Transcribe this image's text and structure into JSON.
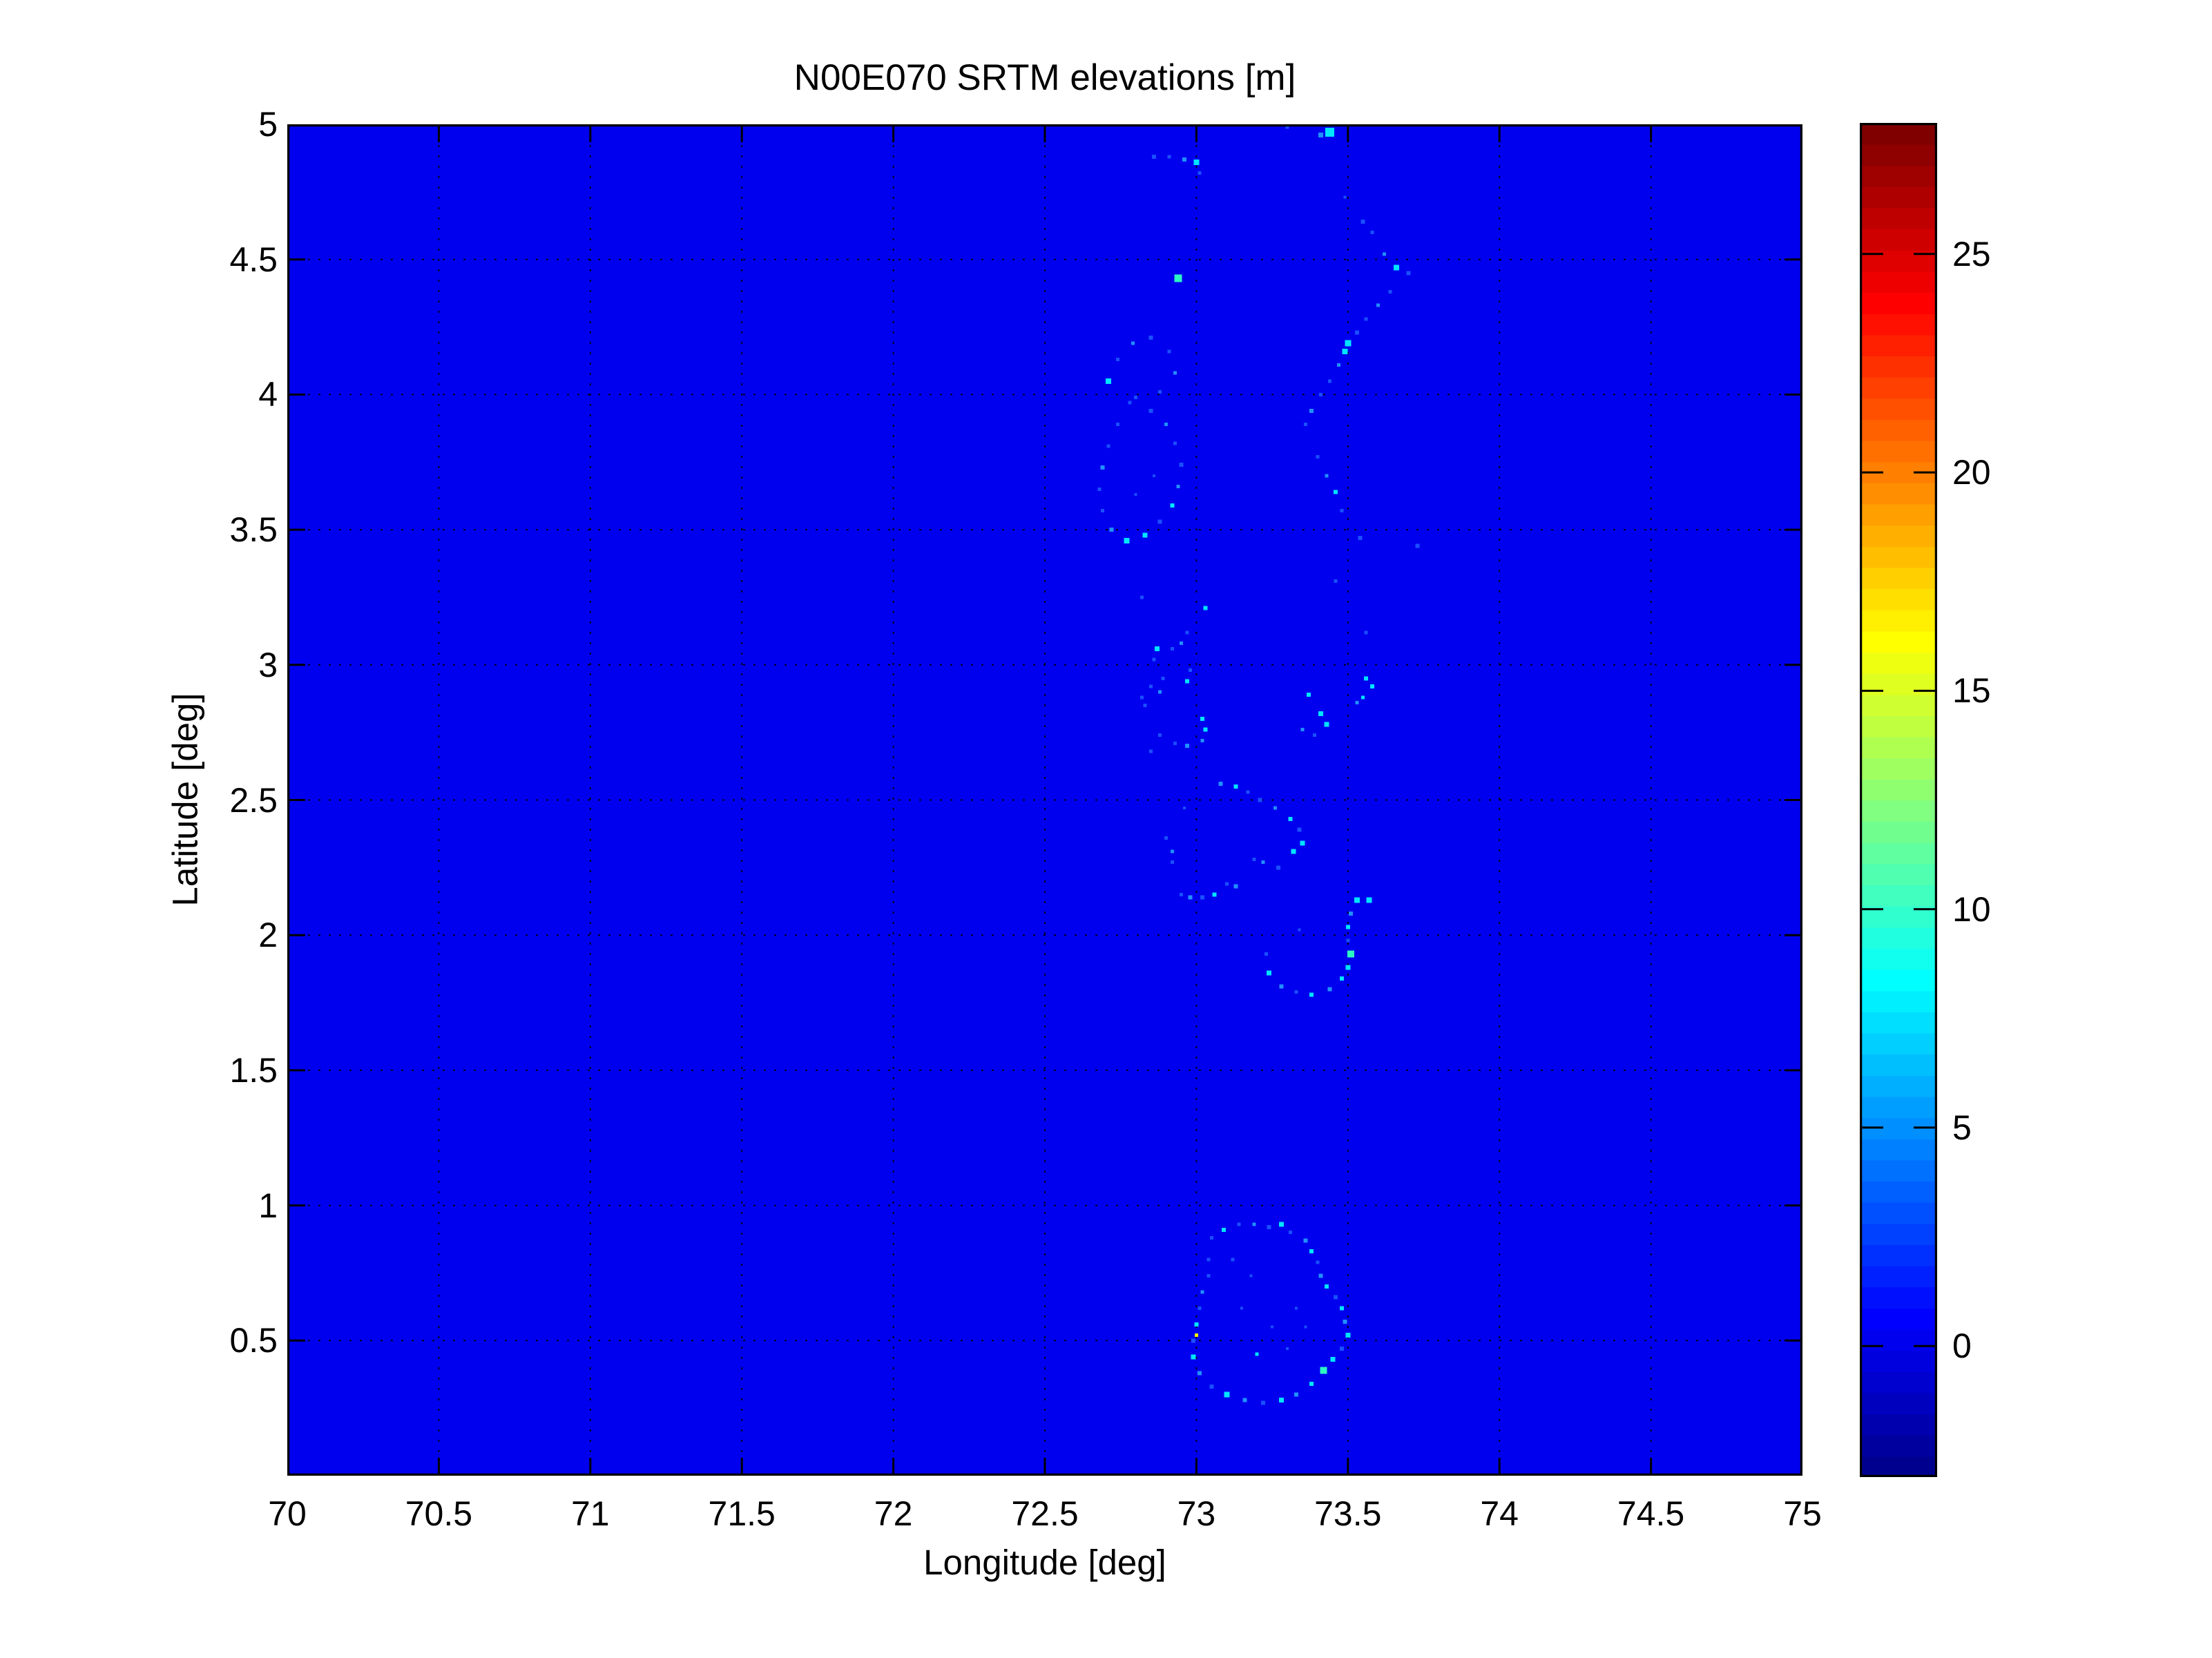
{
  "title": "N00E070 SRTM elevations [m]",
  "xlabel": "Longitude [deg]",
  "ylabel": "Latitude [deg]",
  "chart_data": {
    "type": "heatmap",
    "title": "N00E070 SRTM elevations [m]",
    "xlabel": "Longitude [deg]",
    "ylabel": "Latitude [deg]",
    "x_range": [
      70,
      75
    ],
    "y_range": [
      0,
      5
    ],
    "x_ticks": [
      70,
      70.5,
      71,
      71.5,
      72,
      72.5,
      73,
      73.5,
      74,
      74.5,
      75
    ],
    "y_ticks": [
      0.5,
      1,
      1.5,
      2,
      2.5,
      3,
      3.5,
      4,
      4.5,
      5
    ],
    "grid": true,
    "grid_style": "dotted-black",
    "colormap": "jet-64",
    "color_range": [
      -3,
      28
    ],
    "colorbar_ticks": [
      0,
      5,
      10,
      15,
      20,
      25
    ],
    "background_value": 0,
    "units": "m",
    "palette": {
      "b1": "#1a4fff",
      "b2": "#2190ff",
      "c": "#00e4ff",
      "t": "#2cf6c3",
      "y": "#f8ef00"
    },
    "features": [
      [
        73.44,
        4.97,
        13,
        "c"
      ],
      [
        73.41,
        4.96,
        7,
        "b2"
      ],
      [
        73.3,
        4.99,
        5,
        "b1"
      ],
      [
        73.49,
        4.73,
        4,
        "b1"
      ],
      [
        72.86,
        4.88,
        6,
        "b1"
      ],
      [
        72.91,
        4.88,
        5,
        "b1"
      ],
      [
        72.96,
        4.87,
        6,
        "b2"
      ],
      [
        73.0,
        4.86,
        8,
        "c"
      ],
      [
        73.01,
        4.82,
        5,
        "b1"
      ],
      [
        73.55,
        4.64,
        6,
        "b1"
      ],
      [
        73.58,
        4.6,
        5,
        "b1"
      ],
      [
        73.62,
        4.52,
        5,
        "b2"
      ],
      [
        73.66,
        4.47,
        8,
        "c"
      ],
      [
        73.7,
        4.45,
        6,
        "b1"
      ],
      [
        73.64,
        4.38,
        5,
        "b1"
      ],
      [
        73.6,
        4.33,
        5,
        "b2"
      ],
      [
        73.56,
        4.28,
        5,
        "b1"
      ],
      [
        73.53,
        4.23,
        6,
        "b1"
      ],
      [
        73.5,
        4.19,
        9,
        "c"
      ],
      [
        73.49,
        4.16,
        8,
        "c"
      ],
      [
        73.47,
        4.11,
        5,
        "b2"
      ],
      [
        73.44,
        4.05,
        5,
        "b1"
      ],
      [
        73.41,
        4.0,
        5,
        "b1"
      ],
      [
        73.38,
        3.94,
        6,
        "b2"
      ],
      [
        73.36,
        3.89,
        5,
        "b1"
      ],
      [
        72.94,
        4.43,
        11,
        "t"
      ],
      [
        72.71,
        4.05,
        8,
        "c"
      ],
      [
        72.74,
        4.13,
        5,
        "b1"
      ],
      [
        72.79,
        4.19,
        5,
        "b2"
      ],
      [
        72.85,
        4.21,
        6,
        "b1"
      ],
      [
        72.91,
        4.16,
        5,
        "b1"
      ],
      [
        72.93,
        4.08,
        5,
        "b2"
      ],
      [
        72.88,
        4.01,
        5,
        "b1"
      ],
      [
        72.8,
        3.99,
        5,
        "b1"
      ],
      [
        72.78,
        3.97,
        5,
        "b1"
      ],
      [
        72.85,
        3.94,
        6,
        "b1"
      ],
      [
        72.9,
        3.89,
        5,
        "b2"
      ],
      [
        72.93,
        3.82,
        5,
        "b1"
      ],
      [
        72.95,
        3.74,
        6,
        "b1"
      ],
      [
        72.94,
        3.66,
        5,
        "b2"
      ],
      [
        72.92,
        3.59,
        6,
        "c"
      ],
      [
        72.88,
        3.53,
        6,
        "b1"
      ],
      [
        72.83,
        3.48,
        7,
        "c"
      ],
      [
        72.77,
        3.46,
        8,
        "c"
      ],
      [
        72.72,
        3.5,
        6,
        "b2"
      ],
      [
        72.69,
        3.57,
        5,
        "b1"
      ],
      [
        72.68,
        3.65,
        5,
        "b1"
      ],
      [
        72.69,
        3.73,
        6,
        "b2"
      ],
      [
        72.71,
        3.81,
        5,
        "b1"
      ],
      [
        72.74,
        3.89,
        5,
        "b1"
      ],
      [
        72.8,
        3.63,
        4,
        "b1"
      ],
      [
        72.86,
        3.7,
        4,
        "b1"
      ],
      [
        73.4,
        3.77,
        5,
        "b1"
      ],
      [
        73.43,
        3.7,
        5,
        "b2"
      ],
      [
        73.46,
        3.64,
        6,
        "c"
      ],
      [
        73.48,
        3.57,
        5,
        "b1"
      ],
      [
        73.54,
        3.47,
        6,
        "b1"
      ],
      [
        73.73,
        3.44,
        6,
        "b1"
      ],
      [
        73.46,
        3.31,
        5,
        "b1"
      ],
      [
        72.82,
        3.25,
        5,
        "b1"
      ],
      [
        73.03,
        3.21,
        6,
        "c"
      ],
      [
        72.97,
        3.12,
        5,
        "b1"
      ],
      [
        72.95,
        3.08,
        5,
        "b2"
      ],
      [
        72.92,
        3.06,
        5,
        "b1"
      ],
      [
        72.87,
        3.06,
        7,
        "c"
      ],
      [
        72.86,
        3.02,
        5,
        "b1"
      ],
      [
        72.98,
        2.98,
        5,
        "b1"
      ],
      [
        72.97,
        2.94,
        6,
        "c"
      ],
      [
        72.89,
        2.95,
        5,
        "b1"
      ],
      [
        72.85,
        2.92,
        5,
        "b1"
      ],
      [
        72.88,
        2.9,
        5,
        "b2"
      ],
      [
        72.82,
        2.88,
        5,
        "b1"
      ],
      [
        72.83,
        2.85,
        5,
        "b1"
      ],
      [
        73.02,
        2.8,
        6,
        "c"
      ],
      [
        73.03,
        2.76,
        6,
        "c"
      ],
      [
        73.02,
        2.72,
        5,
        "b2"
      ],
      [
        72.88,
        2.74,
        5,
        "b1"
      ],
      [
        72.93,
        2.71,
        5,
        "b1"
      ],
      [
        72.97,
        2.7,
        6,
        "b2"
      ],
      [
        72.85,
        2.68,
        5,
        "b1"
      ],
      [
        73.37,
        2.89,
        6,
        "c"
      ],
      [
        73.41,
        2.82,
        7,
        "c"
      ],
      [
        73.43,
        2.78,
        7,
        "c"
      ],
      [
        73.35,
        2.76,
        5,
        "b2"
      ],
      [
        73.39,
        2.74,
        5,
        "b1"
      ],
      [
        73.56,
        2.95,
        6,
        "c"
      ],
      [
        73.58,
        2.92,
        6,
        "c"
      ],
      [
        73.53,
        2.86,
        5,
        "b2"
      ],
      [
        73.55,
        2.88,
        5,
        "c"
      ],
      [
        73.56,
        3.12,
        5,
        "b1"
      ],
      [
        73.08,
        2.56,
        6,
        "b2"
      ],
      [
        73.13,
        2.55,
        6,
        "c"
      ],
      [
        73.17,
        2.53,
        5,
        "b1"
      ],
      [
        73.21,
        2.5,
        6,
        "b1"
      ],
      [
        73.26,
        2.47,
        5,
        "b2"
      ],
      [
        73.31,
        2.43,
        6,
        "c"
      ],
      [
        73.34,
        2.39,
        6,
        "b1"
      ],
      [
        73.35,
        2.34,
        7,
        "c"
      ],
      [
        73.32,
        2.31,
        7,
        "c"
      ],
      [
        73.27,
        2.25,
        6,
        "b1"
      ],
      [
        73.22,
        2.27,
        5,
        "b2"
      ],
      [
        73.19,
        2.28,
        5,
        "b1"
      ],
      [
        73.13,
        2.18,
        6,
        "b2"
      ],
      [
        73.1,
        2.19,
        5,
        "b1"
      ],
      [
        73.06,
        2.15,
        6,
        "c"
      ],
      [
        73.02,
        2.14,
        6,
        "b1"
      ],
      [
        72.98,
        2.14,
        6,
        "b2"
      ],
      [
        72.95,
        2.15,
        5,
        "b1"
      ],
      [
        72.9,
        2.36,
        5,
        "b1"
      ],
      [
        72.92,
        2.31,
        5,
        "b2"
      ],
      [
        72.92,
        2.27,
        5,
        "b1"
      ],
      [
        72.96,
        2.47,
        4,
        "b1"
      ],
      [
        73.53,
        2.13,
        8,
        "c"
      ],
      [
        73.57,
        2.13,
        8,
        "c"
      ],
      [
        73.51,
        2.08,
        6,
        "b2"
      ],
      [
        73.5,
        2.03,
        6,
        "c"
      ],
      [
        73.5,
        1.98,
        5,
        "b1"
      ],
      [
        73.51,
        1.93,
        10,
        "t"
      ],
      [
        73.5,
        1.88,
        7,
        "c"
      ],
      [
        73.48,
        1.84,
        6,
        "c"
      ],
      [
        73.44,
        1.8,
        6,
        "b2"
      ],
      [
        73.38,
        1.78,
        6,
        "c"
      ],
      [
        73.33,
        1.79,
        5,
        "b1"
      ],
      [
        73.28,
        1.81,
        6,
        "b2"
      ],
      [
        73.24,
        1.86,
        7,
        "c"
      ],
      [
        73.23,
        1.93,
        5,
        "b1"
      ],
      [
        73.34,
        2.02,
        4,
        "b1"
      ],
      [
        73.05,
        0.88,
        5,
        "b1"
      ],
      [
        73.09,
        0.91,
        6,
        "c"
      ],
      [
        73.14,
        0.93,
        5,
        "b1"
      ],
      [
        73.19,
        0.93,
        5,
        "b2"
      ],
      [
        73.24,
        0.92,
        6,
        "b1"
      ],
      [
        73.28,
        0.93,
        7,
        "c"
      ],
      [
        73.31,
        0.9,
        5,
        "b1"
      ],
      [
        73.36,
        0.87,
        6,
        "b2"
      ],
      [
        73.38,
        0.83,
        6,
        "c"
      ],
      [
        73.4,
        0.79,
        5,
        "b1"
      ],
      [
        73.41,
        0.74,
        6,
        "b2"
      ],
      [
        73.43,
        0.7,
        6,
        "c"
      ],
      [
        73.46,
        0.66,
        6,
        "b1"
      ],
      [
        73.48,
        0.62,
        6,
        "c"
      ],
      [
        73.49,
        0.57,
        6,
        "b2"
      ],
      [
        73.5,
        0.52,
        7,
        "c"
      ],
      [
        73.48,
        0.47,
        6,
        "b1"
      ],
      [
        73.45,
        0.43,
        7,
        "c"
      ],
      [
        73.42,
        0.39,
        10,
        "t"
      ],
      [
        73.38,
        0.34,
        6,
        "c"
      ],
      [
        73.33,
        0.3,
        6,
        "b2"
      ],
      [
        73.28,
        0.28,
        7,
        "c"
      ],
      [
        73.22,
        0.27,
        6,
        "b1"
      ],
      [
        73.16,
        0.28,
        6,
        "b2"
      ],
      [
        73.1,
        0.3,
        8,
        "c"
      ],
      [
        73.05,
        0.33,
        6,
        "b1"
      ],
      [
        73.01,
        0.38,
        6,
        "b2"
      ],
      [
        72.99,
        0.44,
        7,
        "c"
      ],
      [
        72.99,
        0.5,
        6,
        "b1"
      ],
      [
        73.0,
        0.52,
        5,
        "y"
      ],
      [
        73.0,
        0.56,
        6,
        "c"
      ],
      [
        73.01,
        0.62,
        5,
        "b1"
      ],
      [
        73.02,
        0.68,
        5,
        "b2"
      ],
      [
        73.04,
        0.74,
        5,
        "b1"
      ],
      [
        73.04,
        0.8,
        5,
        "b1"
      ],
      [
        73.12,
        0.8,
        5,
        "b1"
      ],
      [
        73.18,
        0.74,
        4,
        "b1"
      ],
      [
        73.25,
        0.55,
        4,
        "b1"
      ],
      [
        73.33,
        0.62,
        4,
        "b1"
      ],
      [
        73.2,
        0.45,
        5,
        "c"
      ],
      [
        73.3,
        0.47,
        4,
        "b1"
      ],
      [
        73.36,
        0.55,
        4,
        "b1"
      ],
      [
        73.15,
        0.62,
        4,
        "b1"
      ]
    ]
  }
}
